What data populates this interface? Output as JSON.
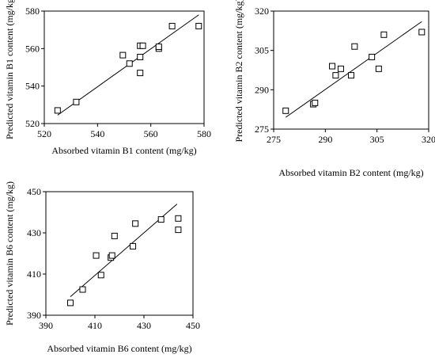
{
  "chart_data": [
    {
      "type": "scatter",
      "xlabel": "Absorbed vitamin B1 content (mg/kg)",
      "ylabel": "Predicted vitamin B1 content (mg/kg)",
      "xlim": [
        520,
        580
      ],
      "ylim": [
        520,
        580
      ],
      "xticks": [
        520,
        540,
        560,
        580
      ],
      "yticks": [
        520,
        540,
        560,
        580
      ],
      "points": [
        {
          "x": 525,
          "y": 527
        },
        {
          "x": 532,
          "y": 531.5
        },
        {
          "x": 549.5,
          "y": 556.5
        },
        {
          "x": 552,
          "y": 552
        },
        {
          "x": 556,
          "y": 547
        },
        {
          "x": 556,
          "y": 555.5
        },
        {
          "x": 556,
          "y": 561.5
        },
        {
          "x": 557,
          "y": 561.5
        },
        {
          "x": 563,
          "y": 560
        },
        {
          "x": 563,
          "y": 561
        },
        {
          "x": 568,
          "y": 572
        },
        {
          "x": 578,
          "y": 572
        }
      ],
      "fit_line": [
        {
          "x": 525,
          "y": 524.5
        },
        {
          "x": 578,
          "y": 578
        }
      ],
      "marker": "open-square",
      "grid": false
    },
    {
      "type": "scatter",
      "xlabel": "Absorbed vitamin B2 content (mg/kg)",
      "ylabel": "Predicted vitamin B2 content (mg/kg)",
      "xlim": [
        275,
        320
      ],
      "ylim": [
        275,
        320
      ],
      "xticks": [
        275,
        290,
        305,
        320
      ],
      "yticks": [
        275,
        290,
        305,
        320
      ],
      "points": [
        {
          "x": 278.5,
          "y": 282
        },
        {
          "x": 286.5,
          "y": 284.5
        },
        {
          "x": 287,
          "y": 285
        },
        {
          "x": 292,
          "y": 299
        },
        {
          "x": 293,
          "y": 295.5
        },
        {
          "x": 294.5,
          "y": 298
        },
        {
          "x": 297.5,
          "y": 295.5
        },
        {
          "x": 298.5,
          "y": 306.5
        },
        {
          "x": 303.5,
          "y": 302.5
        },
        {
          "x": 305.5,
          "y": 298
        },
        {
          "x": 307,
          "y": 311
        },
        {
          "x": 318,
          "y": 312
        }
      ],
      "fit_line": [
        {
          "x": 278.5,
          "y": 279.5
        },
        {
          "x": 318,
          "y": 316
        }
      ],
      "marker": "open-square",
      "grid": false
    },
    {
      "type": "scatter",
      "xlabel": "Absorbed vitamin B6 content (mg/kg)",
      "ylabel": "Predicted vitamin B6 content (mg/kg)",
      "xlim": [
        390,
        450
      ],
      "ylim": [
        390,
        450
      ],
      "xticks": [
        390,
        410,
        430,
        450
      ],
      "yticks": [
        390,
        410,
        430,
        450
      ],
      "points": [
        {
          "x": 400,
          "y": 396
        },
        {
          "x": 405,
          "y": 402.5
        },
        {
          "x": 410.5,
          "y": 419
        },
        {
          "x": 412.5,
          "y": 409.5
        },
        {
          "x": 416.5,
          "y": 418
        },
        {
          "x": 417,
          "y": 419
        },
        {
          "x": 418,
          "y": 428.5
        },
        {
          "x": 425.5,
          "y": 423.5
        },
        {
          "x": 426.5,
          "y": 434.5
        },
        {
          "x": 437,
          "y": 436.5
        },
        {
          "x": 444,
          "y": 437
        },
        {
          "x": 444,
          "y": 431.5
        }
      ],
      "fit_line": [
        {
          "x": 400,
          "y": 399
        },
        {
          "x": 443.5,
          "y": 444
        }
      ],
      "marker": "open-square",
      "grid": false
    }
  ]
}
